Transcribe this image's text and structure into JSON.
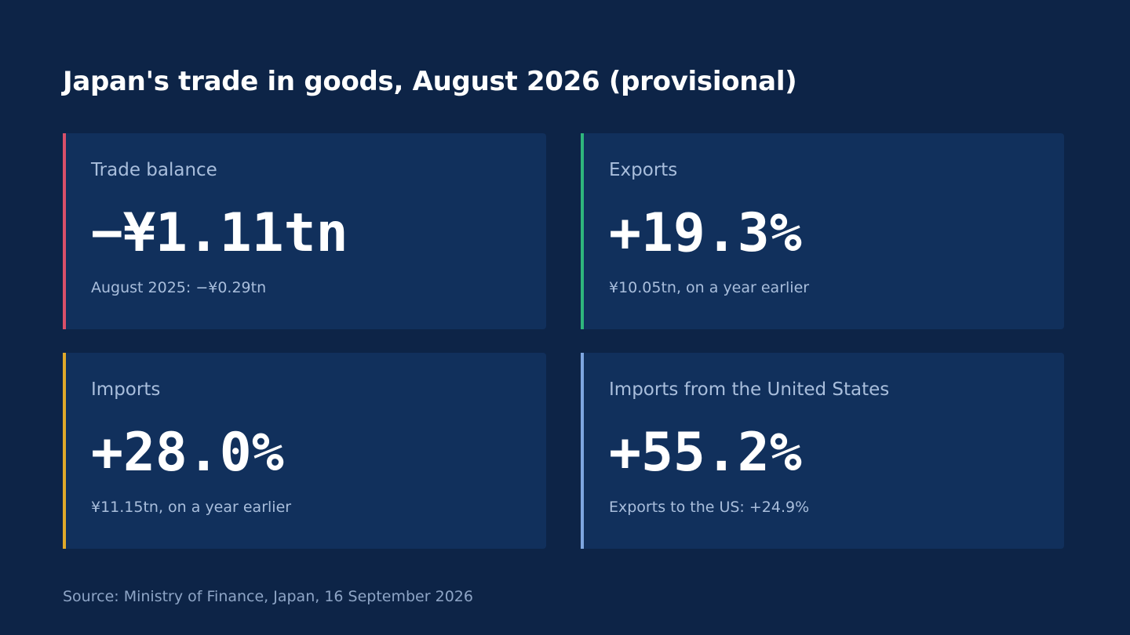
{
  "header": {
    "title": "Japan's trade in goods, August 2026 (provisional)"
  },
  "cards": [
    {
      "label": "Trade balance",
      "value": "−¥1.11tn",
      "note": "August 2025: −¥0.29tn",
      "color": "#d9506a"
    },
    {
      "label": "Exports",
      "value": "+19.3%",
      "note": "¥10.05tn, on a year earlier",
      "color": "#2fb67c"
    },
    {
      "label": "Imports",
      "value": "+28.0%",
      "note": "¥11.15tn, on a year earlier",
      "color": "#e0a92a"
    },
    {
      "label": "Imports from the United States",
      "value": "+55.2%",
      "note": "Exports to the US: +24.9%",
      "color": "#7ea6e0"
    }
  ],
  "footer": {
    "source": "Source: Ministry of Finance, Japan, 16 September 2026"
  }
}
